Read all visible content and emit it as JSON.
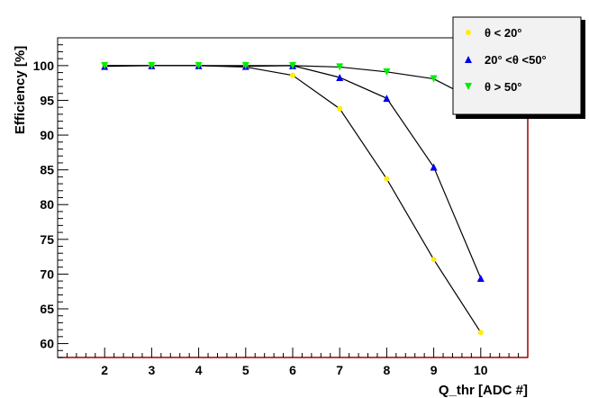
{
  "chart_data": {
    "type": "line",
    "title": "",
    "xlabel": "Q_thr [ADC #]",
    "ylabel": "Efficiency [%]",
    "xlim": [
      1,
      11
    ],
    "ylim": [
      58,
      104
    ],
    "x_ticks": [
      2,
      3,
      4,
      5,
      6,
      7,
      8,
      9,
      10
    ],
    "y_ticks": [
      60,
      65,
      70,
      75,
      80,
      85,
      90,
      95,
      100
    ],
    "x": [
      2,
      3,
      4,
      5,
      6,
      7,
      8,
      9,
      10
    ],
    "legend_position": "top-right",
    "grid": false,
    "series": [
      {
        "name": "θ < 20°",
        "color": "#ffee00",
        "marker": "circle",
        "values": [
          100.0,
          100.0,
          100.0,
          99.8,
          98.6,
          93.8,
          83.7,
          72.1,
          61.6
        ]
      },
      {
        "name": "20° <θ <50°",
        "color": "#0000ee",
        "marker": "triangle-up",
        "values": [
          99.9,
          100.0,
          100.0,
          99.9,
          100.0,
          98.3,
          95.3,
          85.4,
          69.4
        ]
      },
      {
        "name": "θ > 50°",
        "color": "#00ee00",
        "marker": "triangle-down",
        "values": [
          100.0,
          100.0,
          100.0,
          100.0,
          100.0,
          99.8,
          99.1,
          98.1,
          94.6
        ]
      }
    ]
  }
}
